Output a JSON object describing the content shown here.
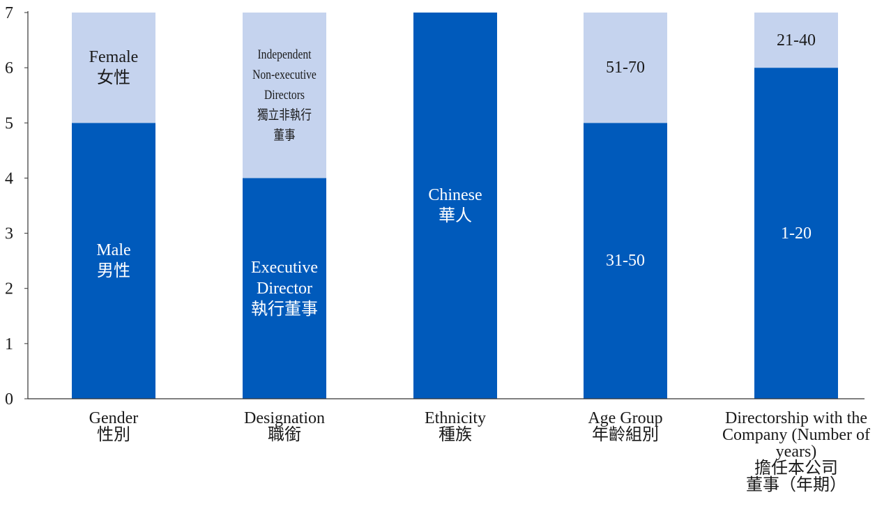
{
  "chart_data": {
    "type": "bar",
    "stacked": true,
    "ylim": [
      0,
      7
    ],
    "yticks": [
      "0",
      "1",
      "2",
      "3",
      "4",
      "5",
      "6",
      "7"
    ],
    "grid": false,
    "legend": "none",
    "colors": {
      "primary": "#005ABB",
      "secondary": "#C5D3EE",
      "axis": "#333333"
    },
    "categories": [
      {
        "label_en": "Gender",
        "label_zh": "性別",
        "segments": [
          {
            "value": 5,
            "color": "primary",
            "lines": [
              "Male",
              "男性"
            ]
          },
          {
            "value": 2,
            "color": "secondary",
            "lines": [
              "Female",
              "女性"
            ]
          }
        ]
      },
      {
        "label_en": "Designation",
        "label_zh": "職銜",
        "segments": [
          {
            "value": 4,
            "color": "primary",
            "lines": [
              "Executive",
              "Director",
              "執行董事"
            ]
          },
          {
            "value": 3,
            "color": "secondary",
            "lines": [
              "Independent",
              "Non-executive",
              "Directors",
              "獨立非執行",
              "董事"
            ],
            "narrow": true
          }
        ]
      },
      {
        "label_en": "Ethnicity",
        "label_zh": "種族",
        "segments": [
          {
            "value": 7,
            "color": "primary",
            "lines": [
              "Chinese",
              "華人"
            ]
          }
        ]
      },
      {
        "label_en": "Age Group",
        "label_zh": "年齡組別",
        "segments": [
          {
            "value": 5,
            "color": "primary",
            "lines": [
              "31-50"
            ]
          },
          {
            "value": 2,
            "color": "secondary",
            "lines": [
              "51-70"
            ]
          }
        ]
      },
      {
        "label_en": "Directorship with the Company (Number of years)",
        "label_zh": "擔任本公司董事（年期）",
        "label_lines": [
          "Directorship with the",
          "Company (Number of",
          "years)",
          "擔任本公司",
          "董事（年期）"
        ],
        "segments": [
          {
            "value": 6,
            "color": "primary",
            "lines": [
              "1-20"
            ]
          },
          {
            "value": 1,
            "color": "secondary",
            "lines": [
              "21-40"
            ]
          }
        ]
      }
    ]
  }
}
